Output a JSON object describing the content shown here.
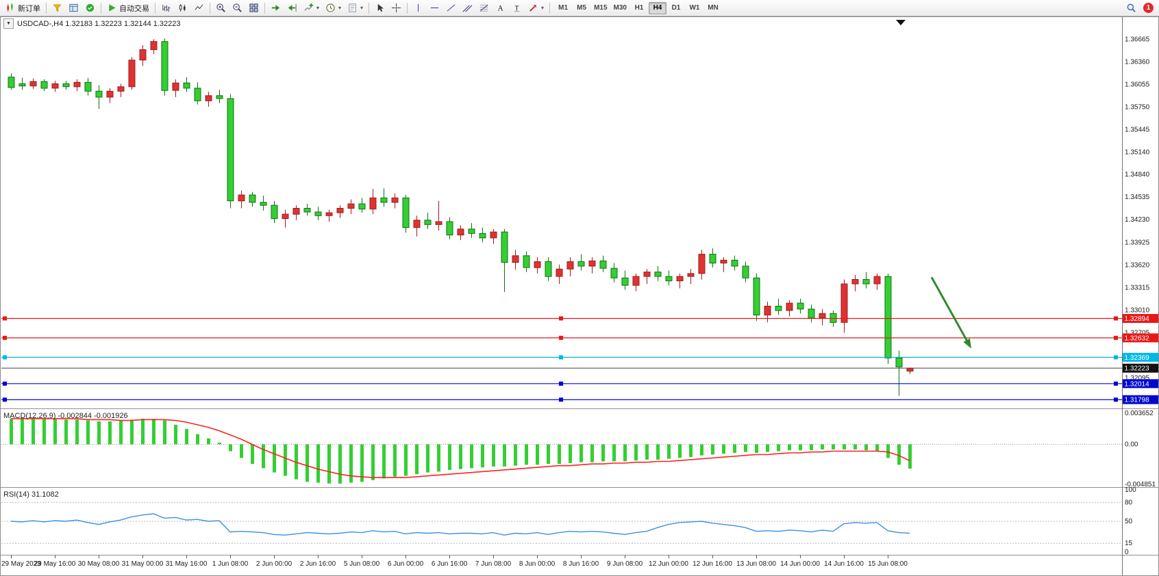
{
  "toolbar": {
    "notification_count": "1",
    "timeframes": [
      "M1",
      "M5",
      "M15",
      "M30",
      "H1",
      "H4",
      "D1",
      "W1",
      "MN"
    ],
    "active_timeframe": "H4",
    "groups": [
      {
        "items": [
          {
            "name": "new-order-button",
            "icon": "new-order",
            "label": "新订单"
          }
        ]
      },
      {
        "items": [
          {
            "name": "market-watch-button",
            "icon": "market-watch"
          },
          {
            "name": "navigator-button",
            "icon": "navigator"
          },
          {
            "name": "terminal-button",
            "icon": "terminal"
          }
        ]
      },
      {
        "items": [
          {
            "name": "auto-trading-button",
            "icon": "auto-trading",
            "label": "自动交易"
          }
        ]
      },
      {
        "items": [
          {
            "name": "bar-chart-button",
            "icon": "bar-chart"
          },
          {
            "name": "candle-chart-button",
            "icon": "candle-chart"
          },
          {
            "name": "line-chart-button",
            "icon": "line-chart"
          }
        ]
      },
      {
        "items": [
          {
            "name": "zoom-in-button",
            "icon": "zoom-in"
          },
          {
            "name": "zoom-out-button",
            "icon": "zoom-out"
          },
          {
            "name": "tile-windows-button",
            "icon": "tile-windows"
          }
        ]
      },
      {
        "items": [
          {
            "name": "auto-scroll-button",
            "icon": "auto-scroll"
          },
          {
            "name": "chart-shift-button",
            "icon": "chart-shift"
          },
          {
            "name": "indicators-button",
            "icon": "indicators",
            "caret": true
          },
          {
            "name": "periods-button",
            "icon": "clock",
            "caret": true
          },
          {
            "name": "templates-button",
            "icon": "template",
            "caret": true
          }
        ]
      },
      {
        "items": [
          {
            "name": "cursor-button",
            "icon": "cursor"
          },
          {
            "name": "crosshair-button",
            "icon": "crosshair"
          }
        ]
      },
      {
        "items": [
          {
            "name": "vertical-line-button",
            "icon": "vertical-line"
          },
          {
            "name": "horizontal-line-button",
            "icon": "horizontal-line"
          },
          {
            "name": "trendline-button",
            "icon": "trendline"
          },
          {
            "name": "channel-button",
            "icon": "channel"
          },
          {
            "name": "fibonacci-button",
            "icon": "fibonacci"
          },
          {
            "name": "text-button",
            "icon": "text"
          },
          {
            "name": "label-button",
            "icon": "label"
          },
          {
            "name": "arrow-tools-button",
            "icon": "arrow-tools",
            "caret": true
          }
        ]
      }
    ]
  },
  "icons": {
    "dropdown": "▼"
  },
  "chart": {
    "title": "USDCAD-,H4  1.32183 1.32223 1.32144 1.32223"
  },
  "chart_data": {
    "type": "candlestick",
    "symbol": "USDCAD-",
    "timeframe": "H4",
    "current_ohlc": {
      "open": "1.32183",
      "high": "1.32223",
      "low": "1.32144",
      "close": "1.32223"
    },
    "ylim": [
      1.3168,
      1.3695
    ],
    "candle_colors": {
      "bull_fill": "#e03232",
      "bull_stroke": "#9c1c1c",
      "bear_fill": "#33cf33",
      "bear_stroke": "#107010"
    },
    "candles": [
      [
        1.3615,
        1.362,
        1.3598,
        1.3601
      ],
      [
        1.3606,
        1.3614,
        1.3598,
        1.3603
      ],
      [
        1.3603,
        1.3613,
        1.3599,
        1.3609
      ],
      [
        1.3609,
        1.3612,
        1.3596,
        1.36
      ],
      [
        1.36,
        1.361,
        1.3595,
        1.3606
      ],
      [
        1.3606,
        1.361,
        1.3598,
        1.3602
      ],
      [
        1.3602,
        1.3612,
        1.3596,
        1.3608
      ],
      [
        1.3608,
        1.3614,
        1.359,
        1.3596
      ],
      [
        1.3596,
        1.3604,
        1.3572,
        1.3588
      ],
      [
        1.3588,
        1.36,
        1.358,
        1.3596
      ],
      [
        1.3596,
        1.3606,
        1.3588,
        1.3602
      ],
      [
        1.3602,
        1.3642,
        1.3598,
        1.3638
      ],
      [
        1.3638,
        1.3658,
        1.363,
        1.3652
      ],
      [
        1.3652,
        1.3666,
        1.3646,
        1.3663
      ],
      [
        1.3663,
        1.3667,
        1.359,
        1.3597
      ],
      [
        1.3597,
        1.3612,
        1.3588,
        1.3607
      ],
      [
        1.3607,
        1.3615,
        1.3595,
        1.36
      ],
      [
        1.36,
        1.3608,
        1.3578,
        1.3583
      ],
      [
        1.3583,
        1.3595,
        1.3575,
        1.359
      ],
      [
        1.359,
        1.3598,
        1.358,
        1.3586
      ],
      [
        1.3586,
        1.3592,
        1.3438,
        1.3448
      ],
      [
        1.3448,
        1.3462,
        1.3438,
        1.3456
      ],
      [
        1.3456,
        1.346,
        1.344,
        1.3446
      ],
      [
        1.3446,
        1.3455,
        1.3435,
        1.3442
      ],
      [
        1.3442,
        1.3448,
        1.3418,
        1.3424
      ],
      [
        1.3424,
        1.3436,
        1.3412,
        1.343
      ],
      [
        1.343,
        1.3442,
        1.3422,
        1.3438
      ],
      [
        1.3438,
        1.3444,
        1.3428,
        1.3433
      ],
      [
        1.3433,
        1.344,
        1.3422,
        1.3428
      ],
      [
        1.3428,
        1.3436,
        1.342,
        1.3432
      ],
      [
        1.3432,
        1.3442,
        1.3425,
        1.3438
      ],
      [
        1.3438,
        1.345,
        1.343,
        1.3444
      ],
      [
        1.3444,
        1.3452,
        1.3432,
        1.3437
      ],
      [
        1.3437,
        1.3464,
        1.343,
        1.3452
      ],
      [
        1.3452,
        1.3465,
        1.344,
        1.3446
      ],
      [
        1.3446,
        1.3458,
        1.3438,
        1.3452
      ],
      [
        1.3452,
        1.3456,
        1.3405,
        1.3412
      ],
      [
        1.3412,
        1.3428,
        1.34,
        1.3422
      ],
      [
        1.3422,
        1.3432,
        1.341,
        1.3416
      ],
      [
        1.3416,
        1.3448,
        1.3408,
        1.342
      ],
      [
        1.342,
        1.3426,
        1.3396,
        1.3402
      ],
      [
        1.3402,
        1.3415,
        1.3395,
        1.341
      ],
      [
        1.341,
        1.3418,
        1.3398,
        1.3404
      ],
      [
        1.3404,
        1.3412,
        1.3392,
        1.3398
      ],
      [
        1.3398,
        1.341,
        1.339,
        1.3406
      ],
      [
        1.3406,
        1.341,
        1.3325,
        1.3365
      ],
      [
        1.3365,
        1.3382,
        1.3355,
        1.3374
      ],
      [
        1.3374,
        1.338,
        1.3352,
        1.3358
      ],
      [
        1.3358,
        1.3372,
        1.335,
        1.3366
      ],
      [
        1.3366,
        1.3372,
        1.334,
        1.3346
      ],
      [
        1.3346,
        1.3362,
        1.3336,
        1.3356
      ],
      [
        1.3356,
        1.3372,
        1.3346,
        1.3366
      ],
      [
        1.3366,
        1.3376,
        1.3354,
        1.336
      ],
      [
        1.336,
        1.3372,
        1.335,
        1.3367
      ],
      [
        1.3367,
        1.3374,
        1.3352,
        1.3357
      ],
      [
        1.3357,
        1.3364,
        1.3338,
        1.3344
      ],
      [
        1.3344,
        1.3354,
        1.3328,
        1.3334
      ],
      [
        1.3334,
        1.335,
        1.3326,
        1.3346
      ],
      [
        1.3346,
        1.3356,
        1.3336,
        1.3352
      ],
      [
        1.3352,
        1.336,
        1.334,
        1.3346
      ],
      [
        1.3346,
        1.3354,
        1.3334,
        1.334
      ],
      [
        1.334,
        1.335,
        1.333,
        1.3346
      ],
      [
        1.3346,
        1.3356,
        1.3336,
        1.335
      ],
      [
        1.335,
        1.3382,
        1.3342,
        1.3376
      ],
      [
        1.3376,
        1.3384,
        1.3358,
        1.3364
      ],
      [
        1.3364,
        1.3372,
        1.3352,
        1.3368
      ],
      [
        1.3368,
        1.3374,
        1.3354,
        1.336
      ],
      [
        1.336,
        1.3366,
        1.3338,
        1.3344
      ],
      [
        1.3344,
        1.335,
        1.3286,
        1.3294
      ],
      [
        1.3294,
        1.3312,
        1.3284,
        1.3306
      ],
      [
        1.3306,
        1.3316,
        1.3294,
        1.33
      ],
      [
        1.33,
        1.3314,
        1.3292,
        1.331
      ],
      [
        1.331,
        1.3316,
        1.3296,
        1.3302
      ],
      [
        1.3302,
        1.3308,
        1.3284,
        1.329
      ],
      [
        1.329,
        1.3302,
        1.328,
        1.3296
      ],
      [
        1.3296,
        1.33,
        1.3278,
        1.3284
      ],
      [
        1.3284,
        1.3342,
        1.327,
        1.3336
      ],
      [
        1.3336,
        1.3348,
        1.3326,
        1.3342
      ],
      [
        1.3342,
        1.3352,
        1.333,
        1.3336
      ],
      [
        1.3336,
        1.335,
        1.3328,
        1.3346
      ],
      [
        1.3346,
        1.335,
        1.3228,
        1.3236
      ],
      [
        1.3236,
        1.3246,
        1.3185,
        1.3224
      ],
      [
        1.32183,
        1.32223,
        1.32144,
        1.32223
      ]
    ],
    "time_labels": [
      "29 May 2023",
      "29 May 16:00",
      "30 May 08:00",
      "31 May 00:00",
      "31 May 16:00",
      "1 Jun 08:00",
      "2 Jun 00:00",
      "2 Jun 16:00",
      "5 Jun 08:00",
      "6 Jun 00:00",
      "6 Jun 16:00",
      "7 Jun 08:00",
      "8 Jun 00:00",
      "8 Jun 16:00",
      "9 Jun 08:00",
      "12 Jun 00:00",
      "12 Jun 16:00",
      "13 Jun 08:00",
      "14 Jun 00:00",
      "14 Jun 16:00",
      "15 Jun 08:00"
    ],
    "label_every_n_bars": 4,
    "price_axis_labels": [
      "1.36665",
      "1.36360",
      "1.36055",
      "1.35750",
      "1.35445",
      "1.35140",
      "1.34840",
      "1.34535",
      "1.34230",
      "1.33925",
      "1.33620",
      "1.33315",
      "1.33010",
      "1.32705",
      "1.32095"
    ],
    "price_lines": [
      {
        "price": 1.32894,
        "label": "1.32894",
        "color": "#e81818",
        "type": "resistance"
      },
      {
        "price": 1.32632,
        "label": "1.32632",
        "color": "#e81818",
        "type": "resistance"
      },
      {
        "price": 1.32369,
        "label": "1.32369",
        "color": "#00b8e8",
        "type": "support"
      },
      {
        "price": 1.32014,
        "label": "1.32014",
        "color": "#0008d0",
        "type": "support"
      },
      {
        "price": 1.31798,
        "label": "1.31798",
        "color": "#0008d0",
        "type": "support"
      }
    ],
    "bid_line": {
      "price": 1.32223,
      "label": "1.32223",
      "color": "#111111"
    },
    "arrow_annotation": {
      "from_bar": 84,
      "from_price": 1.3345,
      "to_bar": 87.5,
      "to_price": 1.3252,
      "color": "#2e8b2e"
    },
    "indicators": {
      "macd": {
        "name": "MACD(12,26,9)",
        "display_values": "-0.002844 -0.001926",
        "axis_labels": [
          "0.003652",
          "0.00",
          "-0.004851"
        ],
        "ylim": [
          -0.004851,
          0.003652
        ],
        "histogram_color": "#33cf33",
        "signal_color": "#ff2020",
        "histogram": [
          0.003,
          0.0031,
          0.0031,
          0.003,
          0.003,
          0.0029,
          0.0029,
          0.0028,
          0.0027,
          0.0027,
          0.0028,
          0.0029,
          0.003,
          0.003,
          0.0028,
          0.0023,
          0.0018,
          0.0012,
          0.0007,
          0.0002,
          -0.0008,
          -0.0016,
          -0.0023,
          -0.0028,
          -0.0033,
          -0.0037,
          -0.0041,
          -0.0044,
          -0.0045,
          -0.0046,
          -0.0046,
          -0.0045,
          -0.0044,
          -0.0042,
          -0.004,
          -0.0038,
          -0.0037,
          -0.0035,
          -0.0033,
          -0.0032,
          -0.003,
          -0.0029,
          -0.0028,
          -0.0027,
          -0.0026,
          -0.0026,
          -0.0025,
          -0.0024,
          -0.0024,
          -0.0023,
          -0.0023,
          -0.0022,
          -0.0021,
          -0.0021,
          -0.002,
          -0.002,
          -0.002,
          -0.0019,
          -0.0018,
          -0.0018,
          -0.0017,
          -0.0016,
          -0.0015,
          -0.0013,
          -0.0012,
          -0.0011,
          -0.001,
          -0.0009,
          -0.001,
          -0.0009,
          -0.0008,
          -0.0007,
          -0.0007,
          -0.0007,
          -0.0006,
          -0.0006,
          -0.0006,
          -0.0006,
          -0.0007,
          -0.0008,
          -0.0016,
          -0.0024,
          -0.002844
        ],
        "signal": [
          0.003,
          0.003,
          0.003,
          0.003,
          0.003,
          0.003,
          0.003,
          0.0029,
          0.0029,
          0.0029,
          0.0028,
          0.0028,
          0.0029,
          0.0029,
          0.0029,
          0.0028,
          0.0026,
          0.0023,
          0.002,
          0.0016,
          0.0011,
          0.0006,
          0.0,
          -0.0006,
          -0.0011,
          -0.0016,
          -0.0021,
          -0.0025,
          -0.0029,
          -0.0032,
          -0.0035,
          -0.0037,
          -0.0038,
          -0.0039,
          -0.0039,
          -0.0039,
          -0.0039,
          -0.0038,
          -0.0037,
          -0.0036,
          -0.0035,
          -0.0034,
          -0.0033,
          -0.0032,
          -0.0031,
          -0.003,
          -0.0029,
          -0.0028,
          -0.0027,
          -0.0026,
          -0.0025,
          -0.0025,
          -0.0024,
          -0.0023,
          -0.0023,
          -0.0022,
          -0.0022,
          -0.0021,
          -0.0021,
          -0.002,
          -0.002,
          -0.0019,
          -0.0018,
          -0.0017,
          -0.0016,
          -0.0015,
          -0.0014,
          -0.0013,
          -0.0012,
          -0.0012,
          -0.0011,
          -0.001,
          -0.001,
          -0.0009,
          -0.0009,
          -0.0008,
          -0.0008,
          -0.0008,
          -0.0008,
          -0.0008,
          -0.0009,
          -0.0013,
          -0.001926
        ]
      },
      "rsi": {
        "name": "RSI(14)",
        "display_value": "31.1082",
        "axis_labels": [
          "100",
          "80",
          "50",
          "15",
          "0"
        ],
        "levels": [
          80,
          50,
          15
        ],
        "ylim": [
          0,
          100
        ],
        "line_color": "#3d8fe0",
        "values": [
          50,
          49,
          51,
          49,
          51,
          50,
          52,
          48,
          45,
          49,
          52,
          57,
          60,
          62,
          55,
          56,
          52,
          53,
          50,
          51,
          33,
          34,
          33,
          32,
          29,
          28,
          30,
          32,
          31,
          30,
          31,
          33,
          32,
          35,
          33,
          34,
          30,
          32,
          31,
          32,
          30,
          31,
          31,
          30,
          32,
          28,
          31,
          30,
          32,
          29,
          32,
          34,
          33,
          34,
          33,
          31,
          29,
          32,
          34,
          40,
          45,
          48,
          49,
          50,
          47,
          45,
          43,
          40,
          34,
          35,
          34,
          36,
          35,
          33,
          36,
          34,
          46,
          48,
          47,
          48,
          35,
          32,
          31.1
        ]
      }
    }
  }
}
